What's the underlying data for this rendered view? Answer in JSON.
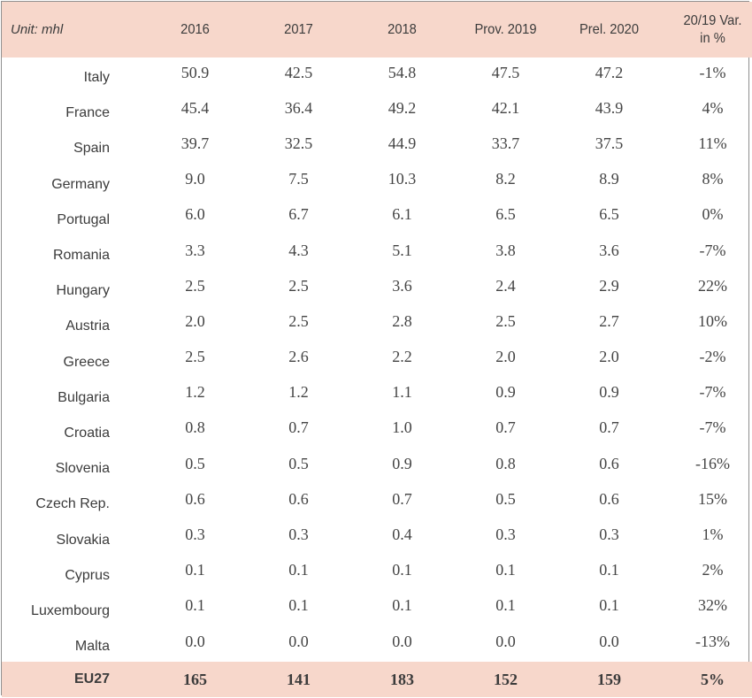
{
  "chart_data": {
    "type": "table",
    "unit_label": "Unit: mhl",
    "columns": [
      "2016",
      "2017",
      "2018",
      "Prov. 2019",
      "Prel. 2020"
    ],
    "var_header_line1": "20/19 Var.",
    "var_header_line2": "in %",
    "rows": [
      {
        "country": "Italy",
        "values": [
          "50.9",
          "42.5",
          "54.8",
          "47.5",
          "47.2"
        ],
        "var": "-1%"
      },
      {
        "country": "France",
        "values": [
          "45.4",
          "36.4",
          "49.2",
          "42.1",
          "43.9"
        ],
        "var": "4%"
      },
      {
        "country": "Spain",
        "values": [
          "39.7",
          "32.5",
          "44.9",
          "33.7",
          "37.5"
        ],
        "var": "11%"
      },
      {
        "country": "Germany",
        "values": [
          "9.0",
          "7.5",
          "10.3",
          "8.2",
          "8.9"
        ],
        "var": "8%"
      },
      {
        "country": "Portugal",
        "values": [
          "6.0",
          "6.7",
          "6.1",
          "6.5",
          "6.5"
        ],
        "var": "0%"
      },
      {
        "country": "Romania",
        "values": [
          "3.3",
          "4.3",
          "5.1",
          "3.8",
          "3.6"
        ],
        "var": "-7%"
      },
      {
        "country": "Hungary",
        "values": [
          "2.5",
          "2.5",
          "3.6",
          "2.4",
          "2.9"
        ],
        "var": "22%"
      },
      {
        "country": "Austria",
        "values": [
          "2.0",
          "2.5",
          "2.8",
          "2.5",
          "2.7"
        ],
        "var": "10%"
      },
      {
        "country": "Greece",
        "values": [
          "2.5",
          "2.6",
          "2.2",
          "2.0",
          "2.0"
        ],
        "var": "-2%"
      },
      {
        "country": "Bulgaria",
        "values": [
          "1.2",
          "1.2",
          "1.1",
          "0.9",
          "0.9"
        ],
        "var": "-7%"
      },
      {
        "country": "Croatia",
        "values": [
          "0.8",
          "0.7",
          "1.0",
          "0.7",
          "0.7"
        ],
        "var": "-7%"
      },
      {
        "country": "Slovenia",
        "values": [
          "0.5",
          "0.5",
          "0.9",
          "0.8",
          "0.6"
        ],
        "var": "-16%"
      },
      {
        "country": "Czech Rep.",
        "values": [
          "0.6",
          "0.6",
          "0.7",
          "0.5",
          "0.6"
        ],
        "var": "15%"
      },
      {
        "country": "Slovakia",
        "values": [
          "0.3",
          "0.3",
          "0.4",
          "0.3",
          "0.3"
        ],
        "var": "1%"
      },
      {
        "country": "Cyprus",
        "values": [
          "0.1",
          "0.1",
          "0.1",
          "0.1",
          "0.1"
        ],
        "var": "2%"
      },
      {
        "country": "Luxembourg",
        "values": [
          "0.1",
          "0.1",
          "0.1",
          "0.1",
          "0.1"
        ],
        "var": "32%"
      },
      {
        "country": "Malta",
        "values": [
          "0.0",
          "0.0",
          "0.0",
          "0.0",
          "0.0"
        ],
        "var": "-13%"
      }
    ],
    "total": {
      "country": "EU27",
      "values": [
        "165",
        "141",
        "183",
        "152",
        "159"
      ],
      "var": "5%"
    }
  },
  "colors": {
    "header_bg": "#f7d7cb",
    "border": "#8f8f8f",
    "text": "#3b3b3b"
  }
}
